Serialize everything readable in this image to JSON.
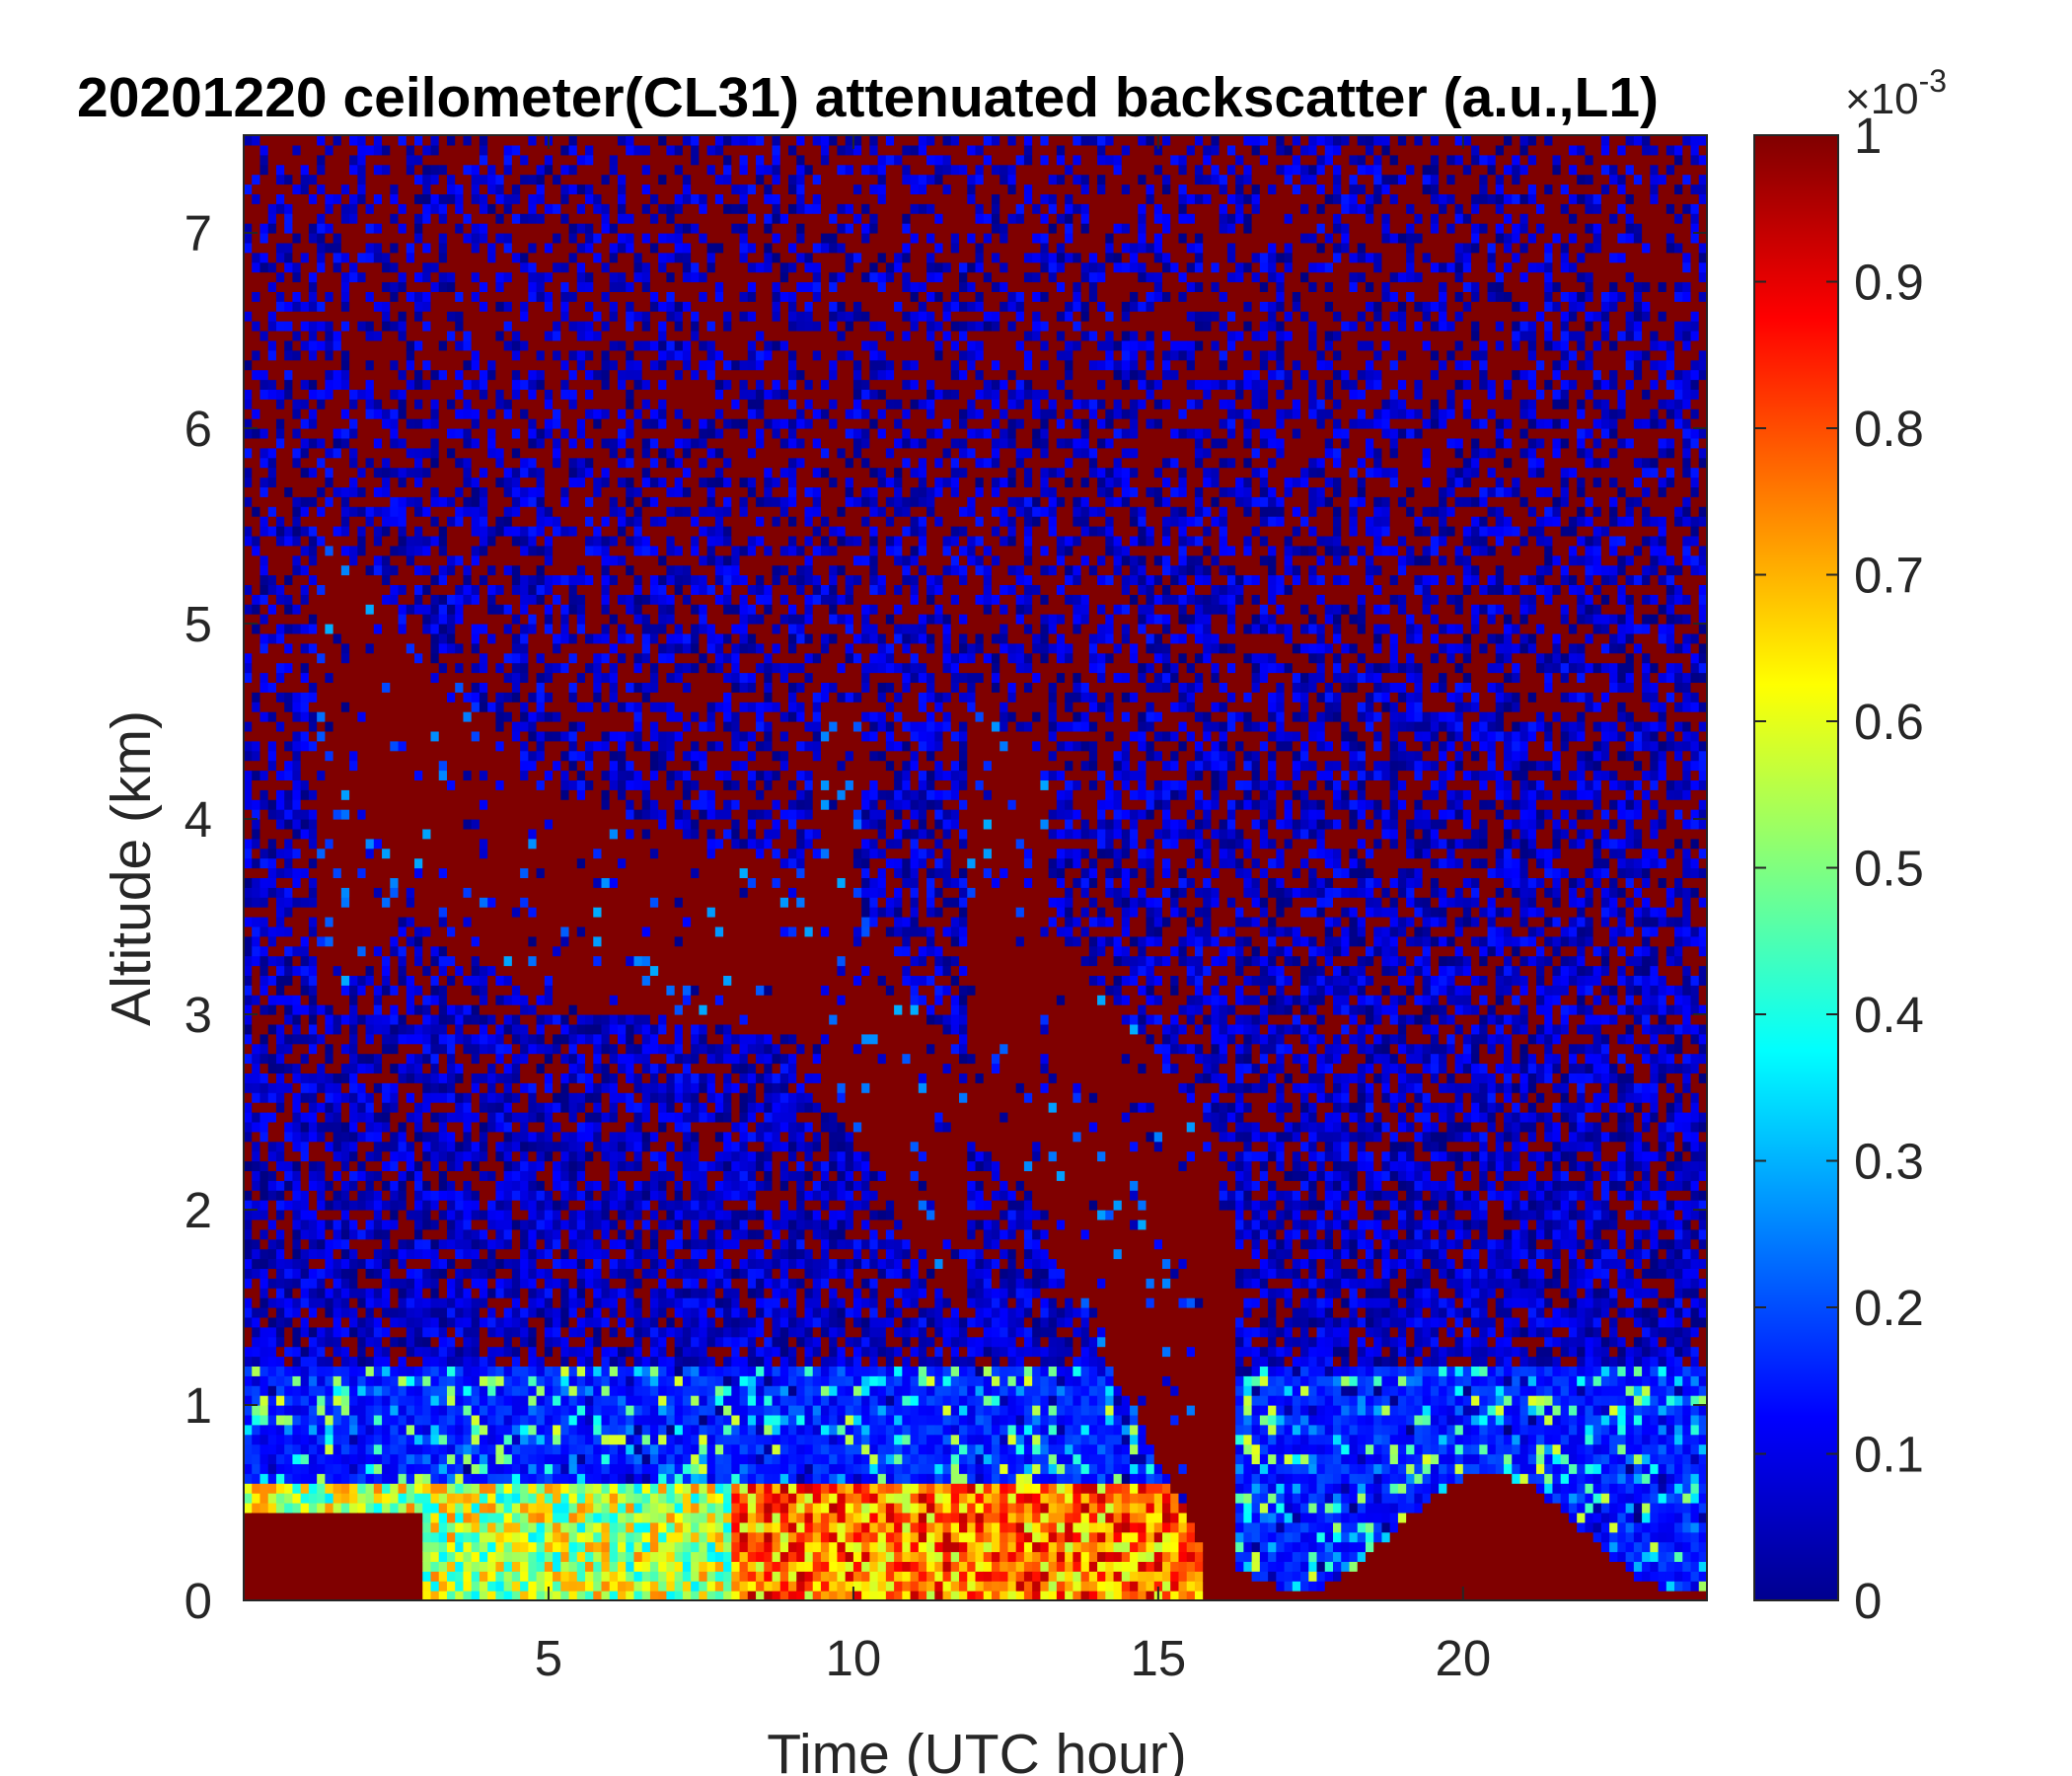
{
  "chart_data": {
    "type": "heatmap",
    "title": "20201220 ceilometer(CL31) attenuated backscatter (a.u.,L1)",
    "xlabel": "Time (UTC hour)",
    "ylabel": "Altitude (km)",
    "xlim": [
      0,
      24
    ],
    "ylim": [
      0,
      7.5
    ],
    "x_ticks": [
      5,
      10,
      15,
      20
    ],
    "y_ticks": [
      0,
      1,
      2,
      3,
      4,
      5,
      6,
      7
    ],
    "colorbar": {
      "label_multiplier": "×10",
      "label_exponent": "-3",
      "range": [
        0,
        1
      ],
      "ticks": [
        0,
        0.1,
        0.2,
        0.3,
        0.4,
        0.5,
        0.6,
        0.7,
        0.8,
        0.9,
        1
      ],
      "tick_labels": [
        "0",
        "0.1",
        "0.2",
        "0.3",
        "0.4",
        "0.5",
        "0.6",
        "0.7",
        "0.8",
        "0.9",
        "1"
      ],
      "colormap": "jet"
    },
    "features": [
      {
        "name": "descending elevated layer",
        "approx_time_hours": [
          1,
          16
        ],
        "approx_altitude_km": [
          5.5,
          1.0
        ]
      },
      {
        "name": "near-surface high backscatter",
        "approx_time_hours": [
          0,
          24
        ],
        "approx_altitude_km": [
          0,
          0.6
        ]
      }
    ]
  }
}
